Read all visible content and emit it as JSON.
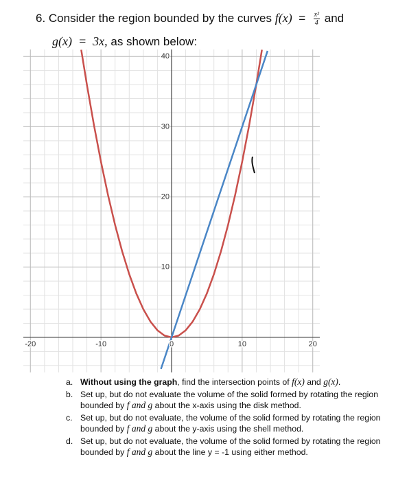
{
  "question": {
    "intro_prefix": "6. Consider the region bounded by the curves",
    "f_label": "f(x)",
    "equals": "=",
    "f_num": "x²",
    "f_den": "4",
    "and": "and",
    "g_def": "g(x)  =  3x,",
    "intro_suffix": "as shown below:",
    "items": [
      {
        "label": "a.",
        "segments": [
          {
            "text": "Without using the graph",
            "style": "bold"
          },
          {
            "text": ", find the intersection points of ",
            "style": "normal"
          },
          {
            "text": "f(x)",
            "style": "math"
          },
          {
            "text": " and ",
            "style": "normal"
          },
          {
            "text": "g(x)",
            "style": "math"
          },
          {
            "text": ".",
            "style": "normal"
          }
        ]
      },
      {
        "label": "b.",
        "segments": [
          {
            "text": "Set up, but do not evaluate the volume of the solid formed by rotating the region bounded by ",
            "style": "normal"
          },
          {
            "text": "f and g",
            "style": "math"
          },
          {
            "text": " about the x-axis using the disk method.",
            "style": "normal"
          }
        ]
      },
      {
        "label": "c.",
        "segments": [
          {
            "text": "Set up, but do not evaluate, the volume of the solid formed by rotating the region bounded by ",
            "style": "normal"
          },
          {
            "text": "f and g",
            "style": "math"
          },
          {
            "text": " about the y-axis using the shell method.",
            "style": "normal"
          }
        ]
      },
      {
        "label": "d.",
        "segments": [
          {
            "text": "Set up, but do not evaluate, the volume of the solid formed by rotating the region bounded by ",
            "style": "normal"
          },
          {
            "text": "f and g",
            "style": "math"
          },
          {
            "text": " about the line y = -1 using either method.",
            "style": "normal"
          }
        ]
      }
    ]
  },
  "chart_data": {
    "type": "line",
    "xlim": [
      -21,
      21
    ],
    "ylim": [
      -5,
      41
    ],
    "xticks": [
      -20,
      -10,
      0,
      10,
      20
    ],
    "yticks": [
      10,
      20,
      30,
      40
    ],
    "grid": true,
    "minor_grid_step": 2,
    "series": [
      {
        "color": "#c9504c",
        "x": [
          -12.8,
          -12,
          -11,
          -10,
          -9,
          -8,
          -7,
          -6,
          -5,
          -4,
          -3,
          -2,
          -1,
          0,
          1,
          2,
          3,
          4,
          5,
          6,
          7,
          8,
          9,
          10,
          11,
          12,
          12.8
        ],
        "values": [
          40.96,
          36,
          30.25,
          25,
          20.25,
          16,
          12.25,
          9,
          6.25,
          4,
          2.25,
          1,
          0.25,
          0,
          0.25,
          1,
          2.25,
          4,
          6.25,
          9,
          12.25,
          16,
          20.25,
          25,
          30.25,
          36,
          40.96
        ]
      },
      {
        "color": "#4a86c6",
        "x": [
          -1.5,
          13.6
        ],
        "values": [
          -4.5,
          40.8
        ]
      }
    ]
  }
}
